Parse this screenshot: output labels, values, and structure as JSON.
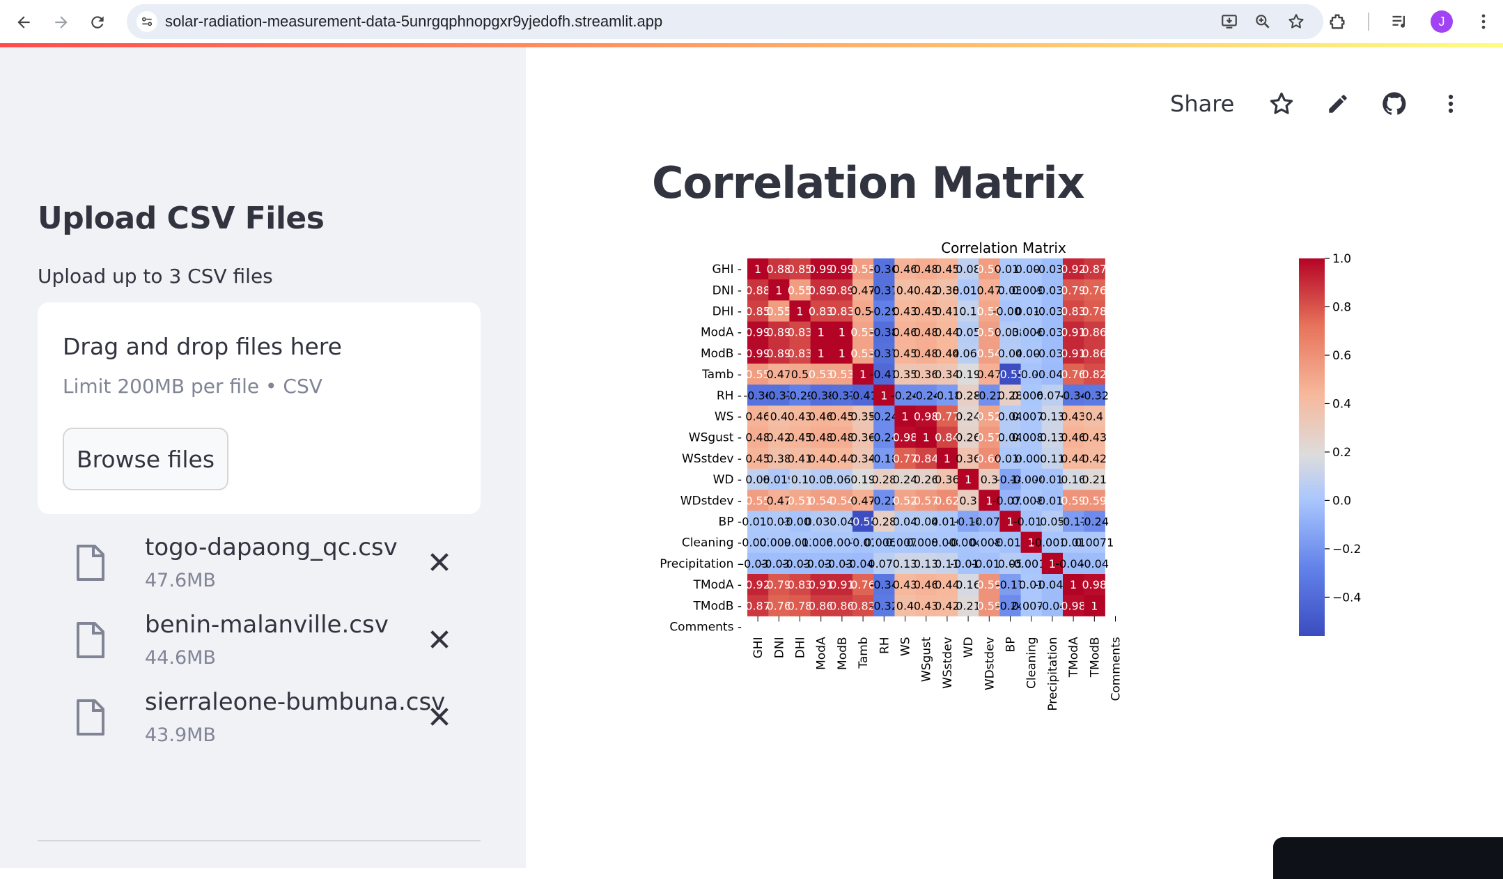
{
  "browser": {
    "url": "solar-radiation-measurement-data-5unrgqphnopgxr9yjedofh.streamlit.app",
    "avatar_letter": "J"
  },
  "sidebar": {
    "title": "Upload CSV Files",
    "label": "Upload up to 3 CSV files",
    "dropzone": {
      "title": "Drag and drop files here",
      "limit": "Limit 200MB per file • CSV",
      "browse_label": "Browse files"
    },
    "files": [
      {
        "name": "togo-dapaong_qc.csv",
        "size": "47.6MB"
      },
      {
        "name": "benin-malanville.csv",
        "size": "44.6MB"
      },
      {
        "name": "sierraleone-bumbuna.csv",
        "size": "43.9MB"
      }
    ]
  },
  "toolbar": {
    "share_label": "Share",
    "icons": [
      "star-icon",
      "edit-icon",
      "github-icon",
      "more-vertical-icon"
    ]
  },
  "main": {
    "title": "Correlation Matrix"
  },
  "chart_data": {
    "type": "heatmap",
    "title": "Correlation Matrix",
    "colormap": "coolwarm",
    "colorbar": {
      "min": -0.56,
      "max": 1.0,
      "ticks": [
        "1.0",
        "0.8",
        "0.6",
        "0.4",
        "0.2",
        "0.0",
        "−0.2",
        "−0.4"
      ]
    },
    "rows": [
      "GHI",
      "DNI",
      "DHI",
      "ModA",
      "ModB",
      "Tamb",
      "RH",
      "WS",
      "WSgust",
      "WSstdev",
      "WD",
      "WDstdev",
      "BP",
      "Cleaning",
      "Precipitation",
      "TModA",
      "TModB",
      "Comments"
    ],
    "columns": [
      "GHI",
      "DNI",
      "DHI",
      "ModA",
      "ModB",
      "Tamb",
      "RH",
      "WS",
      "WSgust",
      "WSstdev",
      "WD",
      "WDstdev",
      "BP",
      "Cleaning",
      "Precipitation",
      "TModA",
      "TModB",
      "Comments"
    ],
    "cells": [
      [
        "1",
        "0.88",
        "0.85",
        "0.99",
        "0.99",
        "0.55",
        "-0.36",
        "0.46",
        "0.48",
        "0.45",
        "0.08",
        "0.55",
        "0.017",
        "0.007",
        "-0.036",
        "0.92",
        "0.87"
      ],
      [
        "0.88",
        "1",
        "0.55",
        "0.89",
        "0.89",
        "0.47",
        "-0.37",
        "0.4",
        "0.42",
        "0.38",
        "0.019",
        "0.47",
        "0.03",
        "0.0099",
        "-0.033",
        "0.79",
        "0.76"
      ],
      [
        "0.85",
        "0.55",
        "1",
        "0.83",
        "0.83",
        "0.5",
        "-0.29",
        "0.43",
        "0.45",
        "0.41",
        "0.1",
        "0.51",
        "-0.009",
        "0.013",
        "-0.035",
        "0.83",
        "0.78"
      ],
      [
        "0.99",
        "0.89",
        "0.83",
        "1",
        "1",
        "0.53",
        "-0.38",
        "0.46",
        "0.48",
        "0.44",
        "0.05",
        "0.54",
        "0.038",
        "0.0066",
        "-0.036",
        "0.91",
        "0.86"
      ],
      [
        "0.99",
        "0.89",
        "0.83",
        "1",
        "1",
        "0.53",
        "-0.37",
        "0.45",
        "0.48",
        "0.44",
        "0.061",
        "0.54",
        "0.04",
        "0.007",
        "-0.036",
        "0.91",
        "0.86"
      ],
      [
        "0.55",
        "0.47",
        "0.5",
        "0.53",
        "0.53",
        "1",
        "-0.41",
        "0.35",
        "0.36",
        "0.34",
        "0.19",
        "0.47",
        "-0.55",
        "-0.01",
        "-0.046",
        "0.76",
        "0.82"
      ],
      [
        "-0.36",
        "-0.37",
        "-0.29",
        "-0.38",
        "-0.37",
        "-0.41",
        "1",
        "-0.24",
        "-0.24",
        "-0.18",
        "0.28",
        "-0.22",
        "0.28",
        "0.0066",
        "0.074",
        "-0.34",
        "-0.32"
      ],
      [
        "0.46",
        "0.4",
        "0.43",
        "0.46",
        "0.45",
        "0.35",
        "-0.24",
        "1",
        "0.98",
        "0.77",
        "0.24",
        "0.52",
        "0.04",
        "0.0078",
        "0.13",
        "0.43",
        "0.4"
      ],
      [
        "0.48",
        "0.42",
        "0.45",
        "0.48",
        "0.48",
        "0.36",
        "-0.24",
        "0.98",
        "1",
        "0.84",
        "0.26",
        "0.57",
        "0.04",
        "0.0085",
        "0.13",
        "0.46",
        "0.43"
      ],
      [
        "0.45",
        "0.38",
        "0.41",
        "0.44",
        "0.44",
        "0.34",
        "-0.18",
        "0.77",
        "0.84",
        "1",
        "0.36",
        "0.62",
        "0.016",
        "0.008",
        "0.11",
        "0.44",
        "0.42"
      ],
      [
        "0.08",
        "0.019",
        "0.1",
        "0.05",
        "0.061",
        "0.19",
        "0.28",
        "0.24",
        "0.26",
        "0.36",
        "1",
        "0.3",
        "-0.14",
        "-0.0047",
        "-0.012",
        "0.16",
        "0.21"
      ],
      [
        "0.55",
        "0.47",
        "0.51",
        "0.54",
        "0.54",
        "0.47",
        "-0.22",
        "0.52",
        "0.57",
        "0.62",
        "0.3",
        "1",
        "-0.071",
        "0.0089",
        "-0.017",
        "0.59",
        "0.59"
      ],
      [
        "0.017",
        "0.03",
        "-0.009",
        "0.038",
        "0.04",
        "-0.55",
        "0.28",
        "0.04",
        "0.04",
        "0.016",
        "-0.14",
        "-0.071",
        "1",
        "-0.017",
        "0.05",
        "-0.17",
        "-0.24"
      ],
      [
        "0.007",
        "0.0099",
        "0.013",
        "0.0066",
        "0.007",
        "-0.01",
        "0.0066",
        "0.0078",
        "0.0085",
        "0.008",
        "-0.0047",
        "0.0089",
        "-0.017",
        "1",
        "-0.0016",
        "0.01",
        "0.0071"
      ],
      [
        "-0.036",
        "-0.033",
        "-0.035",
        "-0.036",
        "-0.036",
        "-0.046",
        "0.074",
        "0.13",
        "0.13",
        "0.11",
        "-0.012",
        "-0.017",
        "0.05",
        "-0.0016",
        "1",
        "-0.041",
        "-0.04"
      ],
      [
        "0.92",
        "0.79",
        "0.83",
        "0.91",
        "0.91",
        "0.76",
        "-0.34",
        "0.43",
        "0.46",
        "0.44",
        "0.16",
        "0.59",
        "-0.17",
        "0.01",
        "-0.041",
        "1",
        "0.98"
      ],
      [
        "0.87",
        "0.76",
        "0.78",
        "0.86",
        "0.86",
        "0.82",
        "-0.32",
        "0.4",
        "0.43",
        "0.42",
        "0.21",
        "0.59",
        "-0.24",
        "0.0071",
        "-0.04",
        "0.98",
        "1"
      ]
    ]
  },
  "colors": {
    "sidebar_bg": "#f0f2f6",
    "text": "#31333f",
    "muted": "#808495",
    "cmap_low": "#3b4cc0",
    "cmap_mid": "#dddddd",
    "cmap_high": "#b40426"
  }
}
